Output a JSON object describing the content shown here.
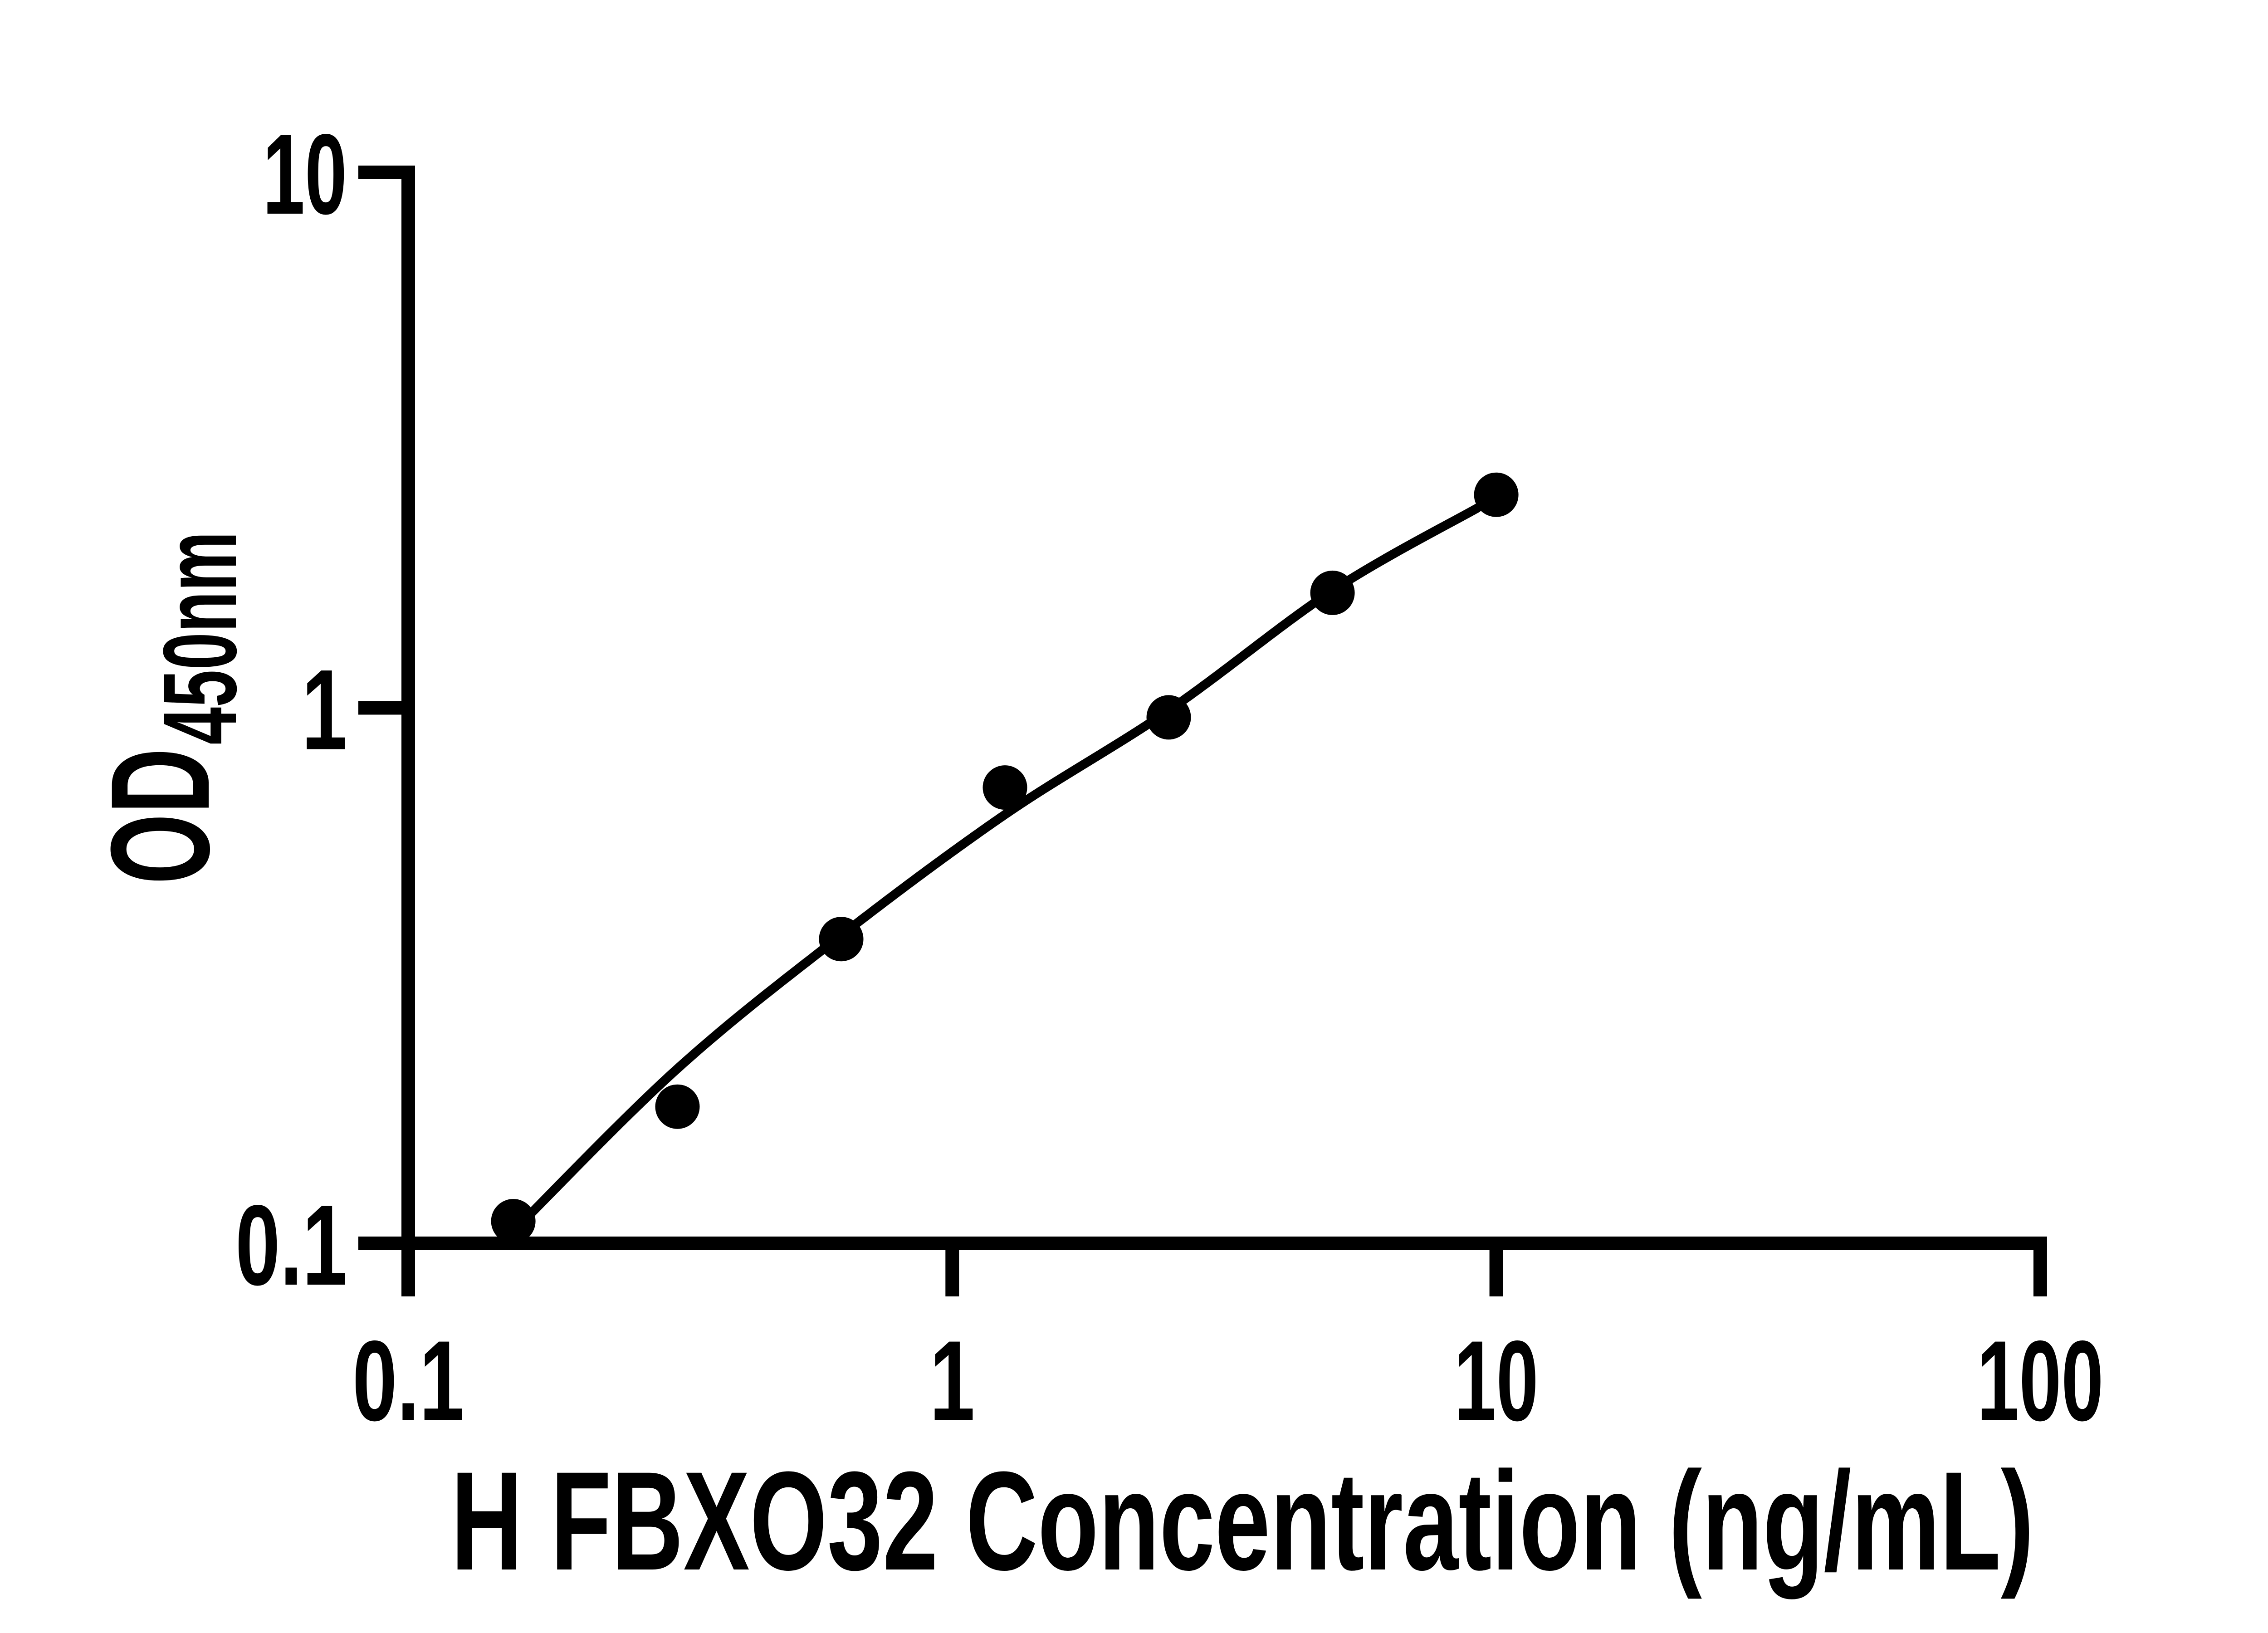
{
  "chart_data": {
    "type": "scatter",
    "title": "",
    "xlabel": "H FBXO32 Concentration (ng/mL)",
    "ylabel_main": "OD",
    "ylabel_sub": "450nm",
    "x_scale": "log10",
    "y_scale": "log10",
    "xlim": [
      0.1,
      100
    ],
    "ylim": [
      0.1,
      10
    ],
    "grid": "off",
    "legend": "none",
    "x_ticks": [
      {
        "value": 0.1,
        "label": "0.1"
      },
      {
        "value": 1,
        "label": "1"
      },
      {
        "value": 10,
        "label": "10"
      },
      {
        "value": 100,
        "label": "100"
      }
    ],
    "y_ticks": [
      {
        "value": 0.1,
        "label": "0.1"
      },
      {
        "value": 1,
        "label": "1"
      },
      {
        "value": 10,
        "label": "10"
      }
    ],
    "series": [
      {
        "name": "standard-curve-points",
        "marker": "filled-circle",
        "points": [
          {
            "x": 0.156,
            "y": 0.11
          },
          {
            "x": 0.3125,
            "y": 0.18
          },
          {
            "x": 0.625,
            "y": 0.37
          },
          {
            "x": 1.25,
            "y": 0.71
          },
          {
            "x": 2.5,
            "y": 0.96
          },
          {
            "x": 5,
            "y": 1.64
          },
          {
            "x": 10,
            "y": 2.5
          }
        ]
      }
    ],
    "fit_line": [
      [
        0.157,
        0.106
      ],
      [
        0.3125,
        0.212
      ],
      [
        0.625,
        0.376
      ],
      [
        1.25,
        0.632
      ],
      [
        2.5,
        0.989
      ],
      [
        5.0,
        1.656
      ],
      [
        9.22,
        2.36
      ]
    ],
    "colors": {
      "foreground": "#000000",
      "background": "#ffffff"
    }
  }
}
